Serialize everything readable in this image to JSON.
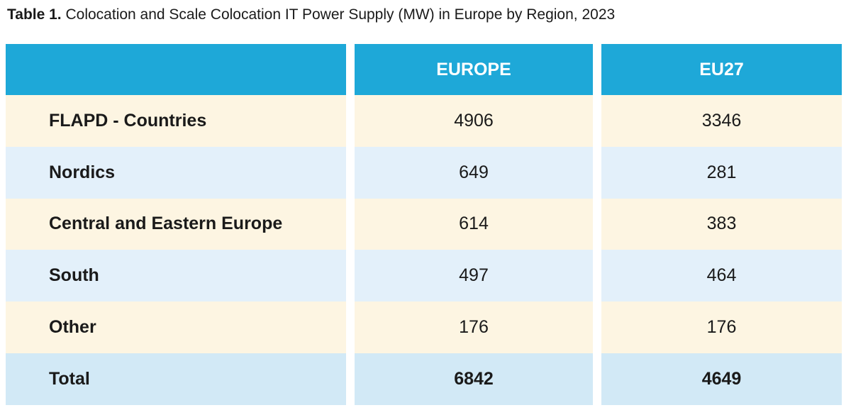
{
  "caption": {
    "label": "Table 1.",
    "text": "Colocation and Scale Colocation IT Power Supply (MW) in Europe by Region, 2023"
  },
  "table": {
    "headers": [
      "",
      "EUROPE",
      "EU27"
    ],
    "rows": [
      {
        "region": "FLAPD - Countries",
        "europe": "4906",
        "eu27": "3346"
      },
      {
        "region": "Nordics",
        "europe": "649",
        "eu27": "281"
      },
      {
        "region": "Central and Eastern Europe",
        "europe": "614",
        "eu27": "383"
      },
      {
        "region": "South",
        "europe": "497",
        "eu27": "464"
      },
      {
        "region": "Other",
        "europe": "176",
        "eu27": "176"
      },
      {
        "region": "Total",
        "europe": "6842",
        "eu27": "4649"
      }
    ]
  },
  "colors": {
    "header": "#1ea8d8",
    "row_cream": "#fdf5e2",
    "row_blue": "#e3f0fa",
    "row_total": "#d2e9f6"
  }
}
